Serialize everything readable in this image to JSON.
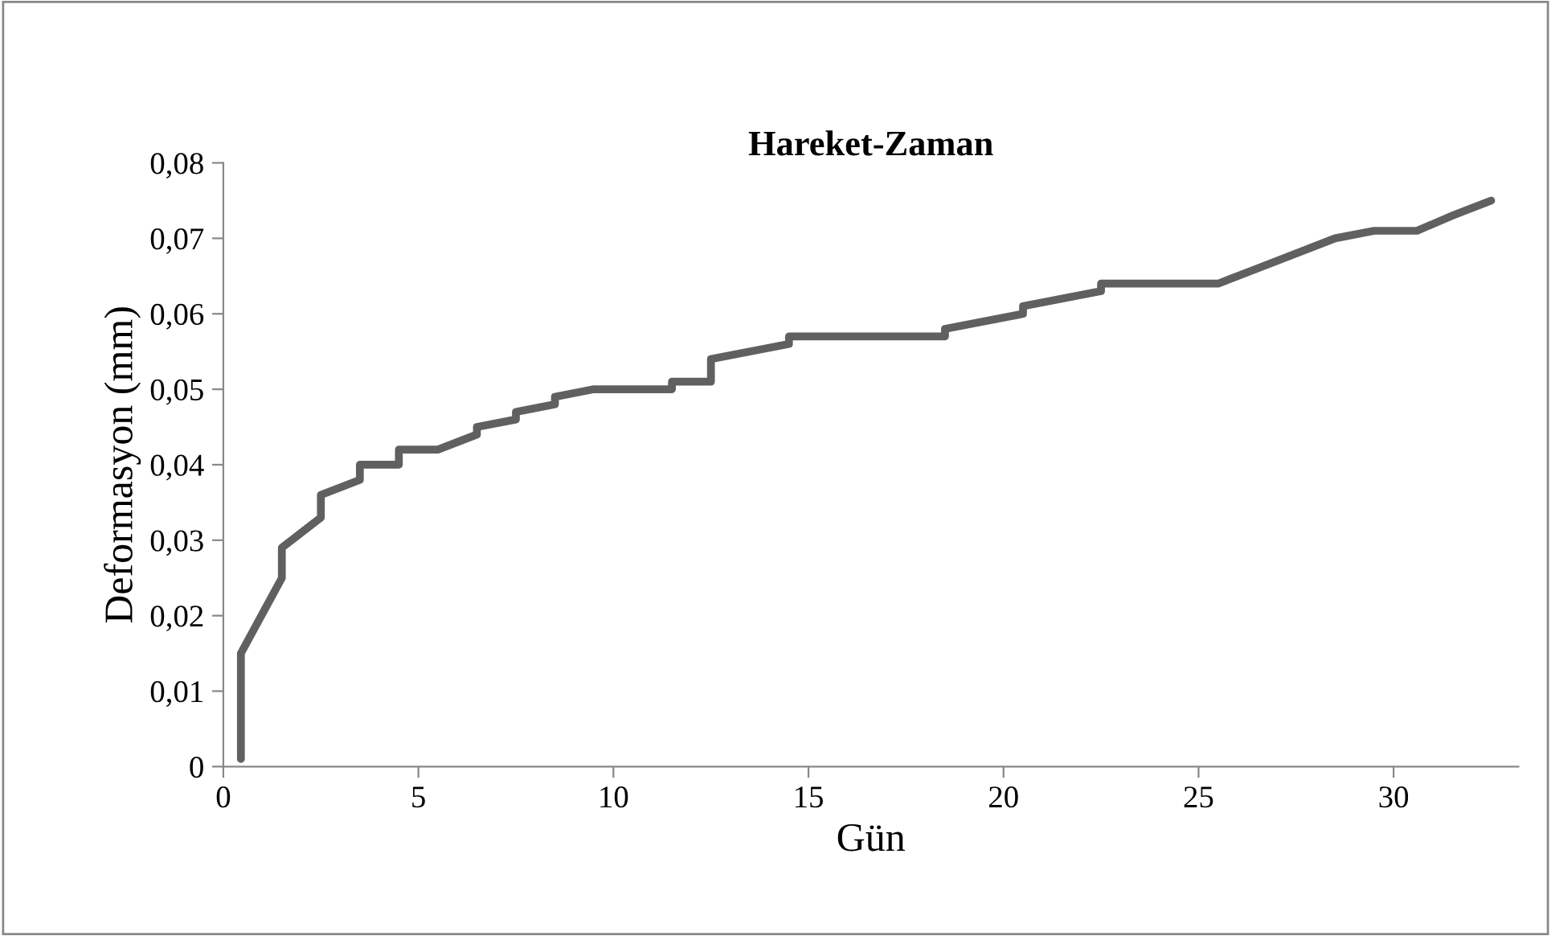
{
  "chart_data": {
    "type": "line",
    "title": "Hareket-Zaman",
    "xlabel": "Gün",
    "ylabel": "Deformasyon (mm)",
    "series": [
      {
        "color": "#606060",
        "x": [
          0.45,
          0.45,
          1.5,
          1.5,
          2.5,
          2.5,
          3.5,
          3.5,
          4.5,
          4.5,
          5.5,
          6.5,
          6.5,
          7.5,
          7.5,
          8.5,
          8.5,
          9.5,
          11.5,
          11.5,
          12.5,
          12.5,
          14.5,
          14.5,
          18.5,
          18.5,
          20.5,
          20.5,
          22.5,
          22.5,
          25.5,
          26.5,
          28.5,
          29.5,
          30.6,
          31.5,
          32.5
        ],
        "values": [
          0.001,
          0.015,
          0.025,
          0.029,
          0.033,
          0.036,
          0.038,
          0.04,
          0.04,
          0.042,
          0.042,
          0.044,
          0.045,
          0.046,
          0.047,
          0.048,
          0.049,
          0.05,
          0.05,
          0.051,
          0.051,
          0.054,
          0.056,
          0.057,
          0.057,
          0.058,
          0.06,
          0.061,
          0.063,
          0.064,
          0.064,
          0.066,
          0.07,
          0.071,
          0.071,
          0.073,
          0.075
        ]
      }
    ],
    "xlim": [
      0,
      33.2
    ],
    "xticks": [
      0,
      5,
      10,
      15,
      20,
      25,
      30
    ],
    "ylim": [
      0,
      0.08
    ],
    "yticks": [
      {
        "value": 0,
        "label": "0"
      },
      {
        "value": 0.01,
        "label": "0,01"
      },
      {
        "value": 0.02,
        "label": "0,02"
      },
      {
        "value": 0.03,
        "label": "0,03"
      },
      {
        "value": 0.04,
        "label": "0,04"
      },
      {
        "value": 0.05,
        "label": "0,05"
      },
      {
        "value": 0.06,
        "label": "0,06"
      },
      {
        "value": 0.07,
        "label": "0,07"
      },
      {
        "value": 0.08,
        "label": "0,08"
      }
    ],
    "grid": false,
    "legend": false,
    "marker": "none",
    "line_style": "solid"
  }
}
